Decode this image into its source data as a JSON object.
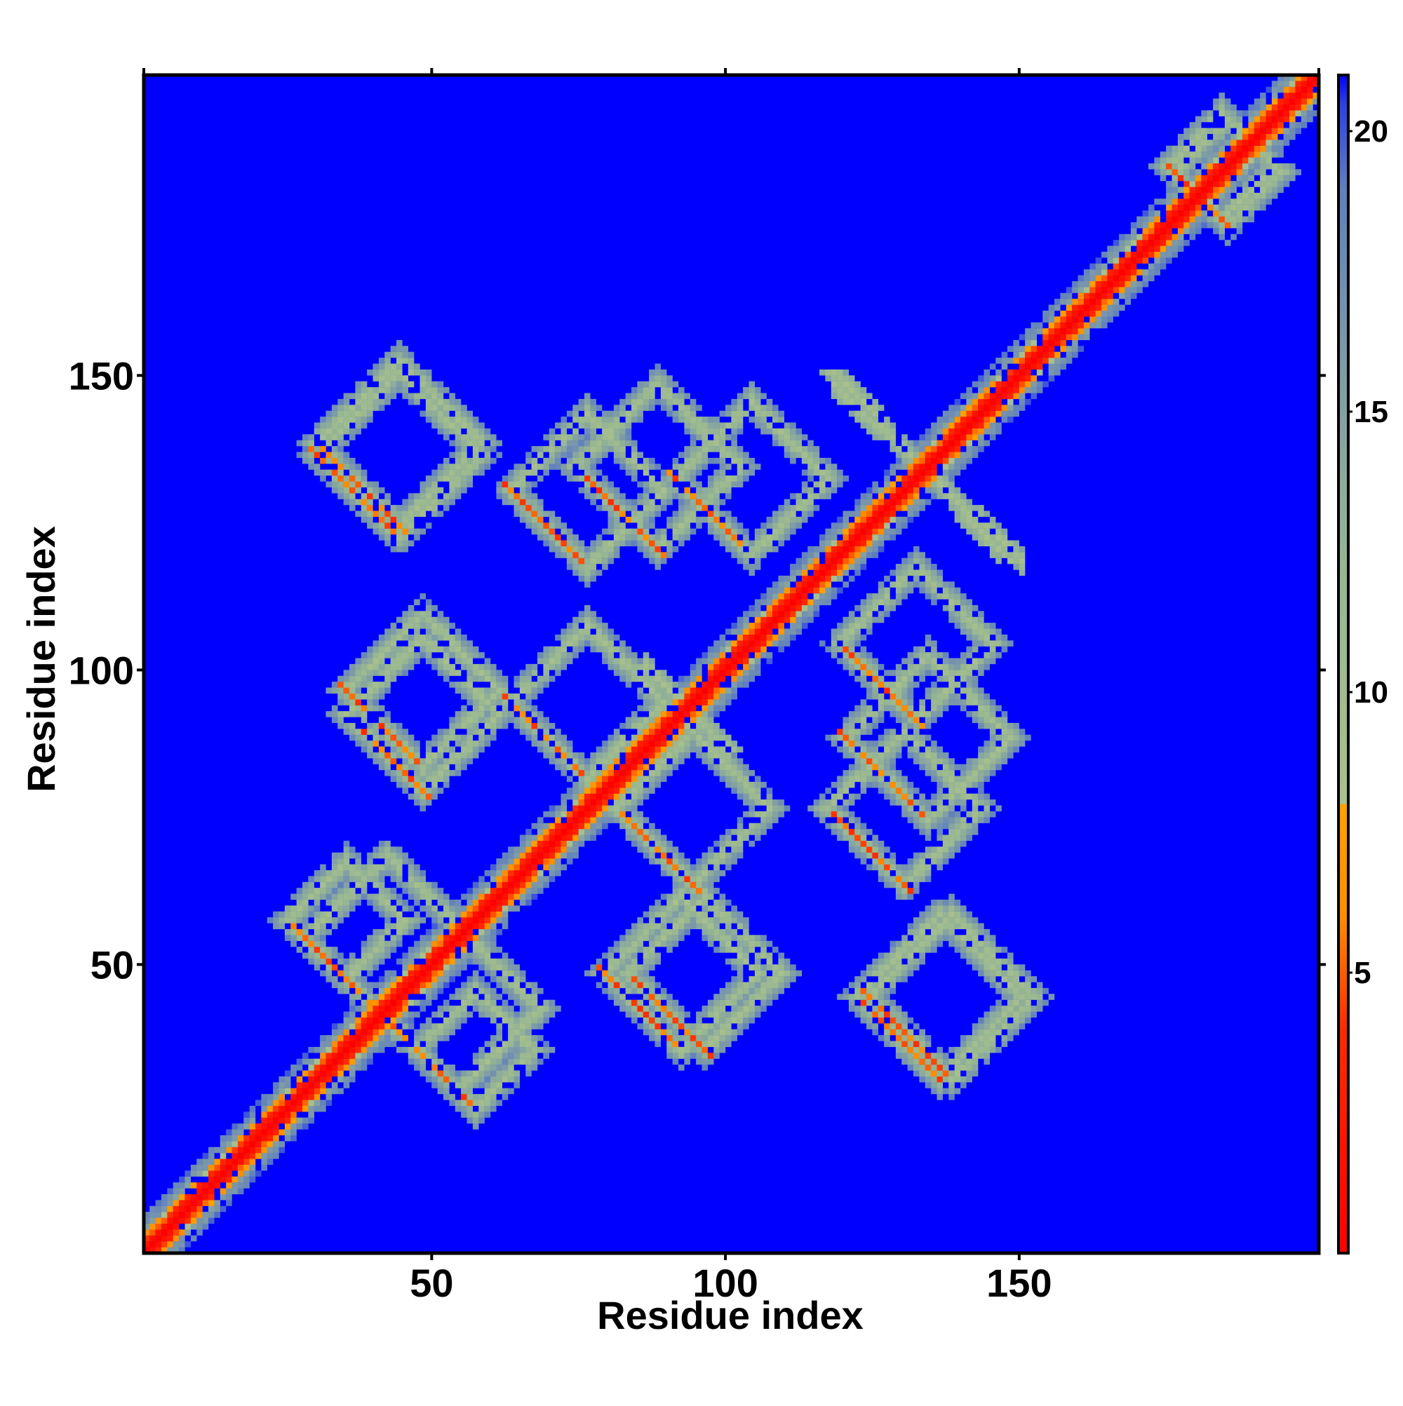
{
  "chart_data": {
    "type": "heatmap",
    "title": "",
    "xlabel": "Residue index",
    "ylabel": "Residue index",
    "n_residues": 200,
    "xlim": [
      1,
      201
    ],
    "ylim": [
      1,
      201
    ],
    "x_ticks": [
      50,
      100,
      150
    ],
    "x_tick_labels": [
      "50",
      "100",
      "150"
    ],
    "y_ticks": [
      50,
      100,
      150
    ],
    "y_tick_labels": [
      "50",
      "100",
      "150"
    ],
    "colorbar": {
      "min": 0,
      "max": 21,
      "ticks": [
        5,
        10,
        15,
        20
      ],
      "tick_labels": [
        "5",
        "10",
        "15",
        "20"
      ],
      "stops": [
        {
          "value": 0,
          "color": "#ff0000"
        },
        {
          "value": 4,
          "color": "#ff2a00"
        },
        {
          "value": 6,
          "color": "#ff8c00"
        },
        {
          "value": 8,
          "color": "#ffa000"
        },
        {
          "value": 8.01,
          "color": "#a9c08c"
        },
        {
          "value": 12,
          "color": "#98b892"
        },
        {
          "value": 16,
          "color": "#7d9aa8"
        },
        {
          "value": 19,
          "color": "#5f7fbf"
        },
        {
          "value": 20.5,
          "color": "#2b3fe8"
        },
        {
          "value": 21,
          "color": "#0000ff"
        }
      ],
      "background_color": "#0000ff"
    },
    "grid": false,
    "legend": "colorbar-right",
    "contact_features": [
      {
        "kind": "diagonal",
        "x": [
          1,
          201
        ],
        "y": [
          1,
          201
        ],
        "min_distance": 0
      },
      {
        "kind": "antiparallel-loop",
        "x_center": 44,
        "y_center": 136,
        "radius": 14
      },
      {
        "kind": "antiparallel-loop",
        "x_center": 76,
        "y_center": 130,
        "radius": 13
      },
      {
        "kind": "antiparallel-loop",
        "x_center": 104,
        "y_center": 132,
        "radius": 13
      },
      {
        "kind": "antiparallel-loop",
        "x_center": 48,
        "y_center": 96,
        "radius": 13
      },
      {
        "kind": "antiparallel-loop",
        "x_center": 76,
        "y_center": 94,
        "radius": 13
      },
      {
        "kind": "antiparallel-loop",
        "x_center": 134,
        "y_center": 88,
        "radius": 14
      },
      {
        "kind": "antiparallel-loop",
        "x_center": 42,
        "y_center": 54,
        "radius": 14
      },
      {
        "kind": "antiparallel-loop",
        "x_center": 92,
        "y_center": 48,
        "radius": 13
      },
      {
        "kind": "antiparallel-loop",
        "x_center": 138,
        "y_center": 44,
        "radius": 14
      },
      {
        "kind": "antiparallel-loop",
        "x_center": 57,
        "y_center": 35,
        "radius": 10
      },
      {
        "kind": "antiparallel-loop",
        "x_center": 185,
        "y_center": 184,
        "radius": 9
      },
      {
        "kind": "crossing-strand",
        "x": [
          118,
          148
        ],
        "y": [
          150,
          118
        ]
      },
      {
        "kind": "crossing-strand",
        "x": [
          86,
          100
        ],
        "y": [
          100,
          86
        ]
      }
    ]
  }
}
